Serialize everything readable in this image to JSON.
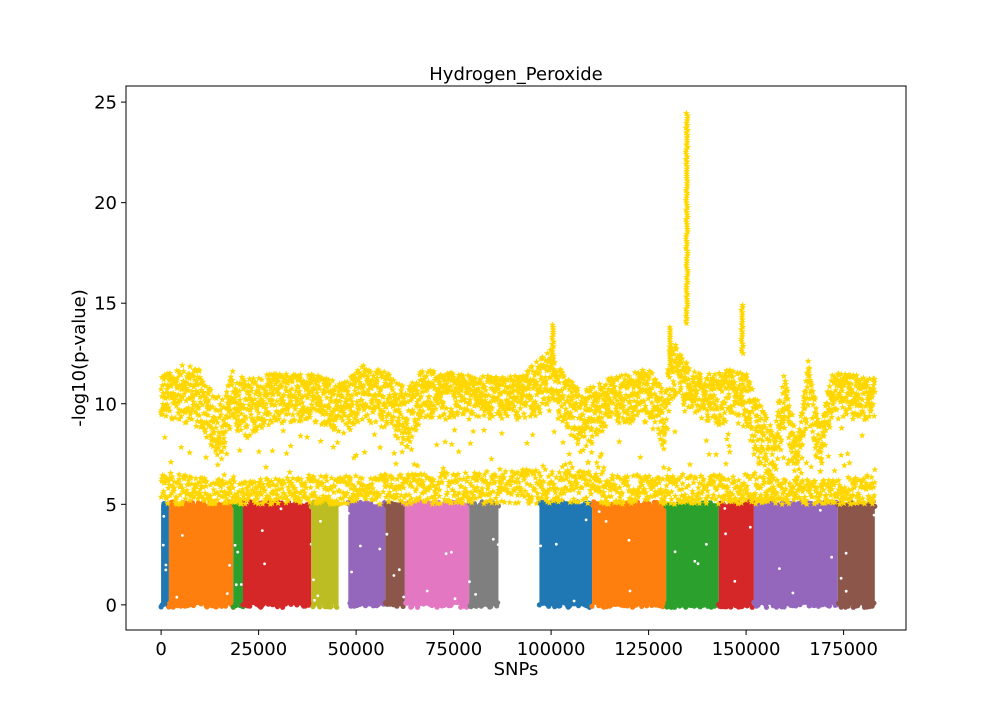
{
  "chart_data": {
    "type": "scatter",
    "title": "Hydrogen_Peroxide",
    "xlabel": "SNPs",
    "ylabel": "-log10(p-value)",
    "xlim": [
      -9000,
      191000
    ],
    "ylim": [
      -1.25,
      25.8
    ],
    "x_ticks": [
      0,
      25000,
      50000,
      75000,
      100000,
      125000,
      150000,
      175000
    ],
    "x_tick_labels": [
      "0",
      "25000",
      "50000",
      "75000",
      "100000",
      "125000",
      "150000",
      "175000"
    ],
    "y_ticks": [
      0,
      5,
      10,
      15,
      20,
      25
    ],
    "y_tick_labels": [
      "0",
      "5",
      "10",
      "15",
      "20",
      "25"
    ],
    "grid": false,
    "legend": "none",
    "low_marker": "circle",
    "high_marker": "star",
    "significance_threshold": 5,
    "significant_color": "#FFD700",
    "chromosome_blocks": [
      {
        "x_start": 0,
        "x_end": 2000,
        "y_min": 0,
        "y_max": 5,
        "color": "#1f77b4"
      },
      {
        "x_start": 2000,
        "x_end": 18500,
        "y_min": 0,
        "y_max": 5,
        "color": "#ff7f0e"
      },
      {
        "x_start": 18500,
        "x_end": 21000,
        "y_min": 0,
        "y_max": 5,
        "color": "#2ca02c"
      },
      {
        "x_start": 21000,
        "x_end": 38500,
        "y_min": 0,
        "y_max": 5,
        "color": "#d62728"
      },
      {
        "x_start": 38500,
        "x_end": 45500,
        "y_min": 0,
        "y_max": 5,
        "color": "#bcbd22"
      },
      {
        "x_start": 48000,
        "x_end": 57500,
        "y_min": 0,
        "y_max": 5,
        "color": "#9467bd"
      },
      {
        "x_start": 57500,
        "x_end": 62500,
        "y_min": 0,
        "y_max": 5,
        "color": "#8c564b"
      },
      {
        "x_start": 62500,
        "x_end": 79000,
        "y_min": 0,
        "y_max": 5,
        "color": "#e377c2"
      },
      {
        "x_start": 79000,
        "x_end": 86500,
        "y_min": 0,
        "y_max": 5,
        "color": "#7f7f7f"
      },
      {
        "x_start": 97000,
        "x_end": 110500,
        "y_min": 0,
        "y_max": 5,
        "color": "#1f77b4"
      },
      {
        "x_start": 110500,
        "x_end": 129500,
        "y_min": 0,
        "y_max": 5,
        "color": "#ff7f0e"
      },
      {
        "x_start": 129500,
        "x_end": 143000,
        "y_min": 0,
        "y_max": 5,
        "color": "#2ca02c"
      },
      {
        "x_start": 143000,
        "x_end": 152000,
        "y_min": 0,
        "y_max": 5,
        "color": "#d62728"
      },
      {
        "x_start": 152000,
        "x_end": 173500,
        "y_min": 0,
        "y_max": 5,
        "color": "#9467bd"
      },
      {
        "x_start": 173500,
        "x_end": 183000,
        "y_min": 0,
        "y_max": 5,
        "color": "#8c564b"
      }
    ],
    "significant_upper_band": [
      {
        "x": 0,
        "y_low": 9.0,
        "y_high": 11.5
      },
      {
        "x": 5000,
        "y_low": 8.8,
        "y_high": 12.3
      },
      {
        "x": 10000,
        "y_low": 8.5,
        "y_high": 12.0
      },
      {
        "x": 13000,
        "y_low": 7.5,
        "y_high": 11.0
      },
      {
        "x": 16000,
        "y_low": 6.5,
        "y_high": 10.5
      },
      {
        "x": 18500,
        "y_low": 8.5,
        "y_high": 12.0
      },
      {
        "x": 22000,
        "y_low": 8.0,
        "y_high": 11.5
      },
      {
        "x": 30000,
        "y_low": 8.8,
        "y_high": 11.8
      },
      {
        "x": 40000,
        "y_low": 8.8,
        "y_high": 11.8
      },
      {
        "x": 46000,
        "y_low": 8.2,
        "y_high": 11.2
      },
      {
        "x": 52000,
        "y_low": 8.8,
        "y_high": 12.2
      },
      {
        "x": 58000,
        "y_low": 8.5,
        "y_high": 11.8
      },
      {
        "x": 63000,
        "y_low": 7.5,
        "y_high": 11.0
      },
      {
        "x": 67000,
        "y_low": 9.0,
        "y_high": 12.0
      },
      {
        "x": 80000,
        "y_low": 9.0,
        "y_high": 11.6
      },
      {
        "x": 92000,
        "y_low": 9.0,
        "y_high": 11.6
      },
      {
        "x": 100000,
        "y_low": 9.2,
        "y_high": 13.0
      },
      {
        "x": 104000,
        "y_low": 8.5,
        "y_high": 11.5
      },
      {
        "x": 108000,
        "y_low": 7.0,
        "y_high": 11.0
      },
      {
        "x": 115000,
        "y_low": 8.8,
        "y_high": 11.5
      },
      {
        "x": 125000,
        "y_low": 8.8,
        "y_high": 12.0
      },
      {
        "x": 129000,
        "y_low": 7.0,
        "y_high": 11.0
      },
      {
        "x": 131000,
        "y_low": 10.0,
        "y_high": 13.5
      },
      {
        "x": 136000,
        "y_low": 9.5,
        "y_high": 11.8
      },
      {
        "x": 142000,
        "y_low": 8.5,
        "y_high": 11.8
      },
      {
        "x": 146000,
        "y_low": 9.0,
        "y_high": 12.0
      },
      {
        "x": 150000,
        "y_low": 8.5,
        "y_high": 11.8
      },
      {
        "x": 153000,
        "y_low": 6.5,
        "y_high": 10.5
      },
      {
        "x": 157000,
        "y_low": 5.5,
        "y_high": 9.0
      },
      {
        "x": 160000,
        "y_low": 8.5,
        "y_high": 12.0
      },
      {
        "x": 163000,
        "y_low": 5.5,
        "y_high": 8.5
      },
      {
        "x": 166000,
        "y_low": 9.0,
        "y_high": 12.5
      },
      {
        "x": 169000,
        "y_low": 6.0,
        "y_high": 9.0
      },
      {
        "x": 172000,
        "y_low": 9.0,
        "y_high": 11.8
      },
      {
        "x": 182500,
        "y_low": 9.0,
        "y_high": 11.5
      }
    ],
    "significant_lower_band": [
      {
        "x": 0,
        "y_low": 5.0,
        "y_high": 6.6
      },
      {
        "x": 20000,
        "y_low": 5.0,
        "y_high": 6.2
      },
      {
        "x": 40000,
        "y_low": 5.0,
        "y_high": 6.4
      },
      {
        "x": 60000,
        "y_low": 5.0,
        "y_high": 6.5
      },
      {
        "x": 80000,
        "y_low": 5.0,
        "y_high": 6.6
      },
      {
        "x": 100000,
        "y_low": 5.0,
        "y_high": 6.8
      },
      {
        "x": 105000,
        "y_low": 5.0,
        "y_high": 7.0
      },
      {
        "x": 110000,
        "y_low": 5.0,
        "y_high": 6.6
      },
      {
        "x": 130000,
        "y_low": 5.0,
        "y_high": 6.4
      },
      {
        "x": 150000,
        "y_low": 5.0,
        "y_high": 6.5
      },
      {
        "x": 170000,
        "y_low": 5.0,
        "y_high": 6.2
      },
      {
        "x": 182500,
        "y_low": 5.0,
        "y_high": 6.5
      }
    ],
    "peaks": [
      {
        "x": 134800,
        "y_min": 14.0,
        "y_max": 24.5
      },
      {
        "x": 149000,
        "y_min": 12.5,
        "y_max": 14.9
      },
      {
        "x": 100500,
        "y_min": 12.0,
        "y_max": 14.0
      },
      {
        "x": 130500,
        "y_min": 12.0,
        "y_max": 13.8
      }
    ]
  }
}
